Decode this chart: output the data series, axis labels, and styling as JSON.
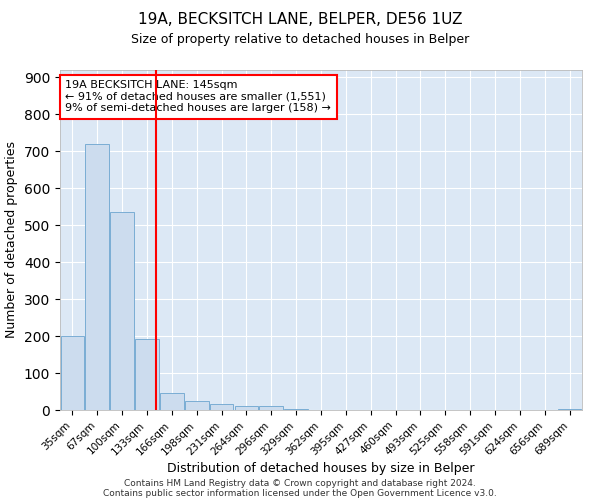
{
  "title1": "19A, BECKSITCH LANE, BELPER, DE56 1UZ",
  "title2": "Size of property relative to detached houses in Belper",
  "xlabel": "Distribution of detached houses by size in Belper",
  "ylabel": "Number of detached properties",
  "bar_color": "#ccdcee",
  "bar_edge_color": "#7aadd4",
  "background_color": "#dce8f5",
  "grid_color": "#ffffff",
  "bin_labels": [
    "35sqm",
    "67sqm",
    "100sqm",
    "133sqm",
    "166sqm",
    "198sqm",
    "231sqm",
    "264sqm",
    "296sqm",
    "329sqm",
    "362sqm",
    "395sqm",
    "427sqm",
    "460sqm",
    "493sqm",
    "525sqm",
    "558sqm",
    "591sqm",
    "624sqm",
    "656sqm",
    "689sqm"
  ],
  "bar_values": [
    200,
    720,
    535,
    193,
    47,
    25,
    15,
    12,
    10,
    2,
    1,
    0,
    0,
    0,
    0,
    0,
    0,
    0,
    0,
    0,
    2
  ],
  "annotation_text": "19A BECKSITCH LANE: 145sqm\n← 91% of detached houses are smaller (1,551)\n9% of semi-detached houses are larger (158) →",
  "ylim": [
    0,
    920
  ],
  "yticks": [
    0,
    100,
    200,
    300,
    400,
    500,
    600,
    700,
    800,
    900
  ],
  "footer1": "Contains HM Land Registry data © Crown copyright and database right 2024.",
  "footer2": "Contains public sector information licensed under the Open Government Licence v3.0."
}
